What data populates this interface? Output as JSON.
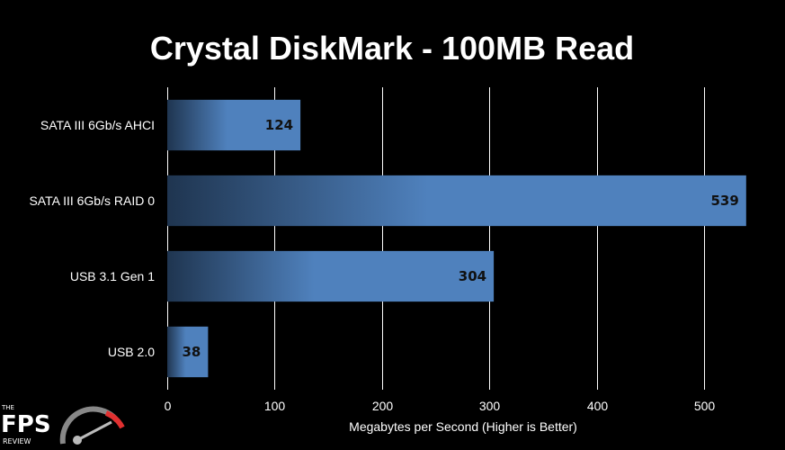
{
  "chart_data": {
    "type": "bar",
    "orientation": "horizontal",
    "title": "Crystal DiskMark - 100MB Read",
    "categories": [
      "SATA III 6Gb/s AHCI",
      "SATA III 6Gb/s RAID 0",
      "USB 3.1 Gen 1",
      "USB 2.0"
    ],
    "values": [
      124,
      539,
      304,
      38
    ],
    "xlabel": "Megabytes per Second (Higher is Better)",
    "ylabel": "",
    "xlim": [
      0,
      540
    ],
    "xticks": [
      0,
      100,
      200,
      300,
      400,
      500
    ],
    "grid": true,
    "bar_color": "#4f81bd",
    "bar_color_dark": "#1f3550"
  },
  "logo": {
    "small": "THE",
    "main": "FPS",
    "sub": "REVIEW"
  }
}
